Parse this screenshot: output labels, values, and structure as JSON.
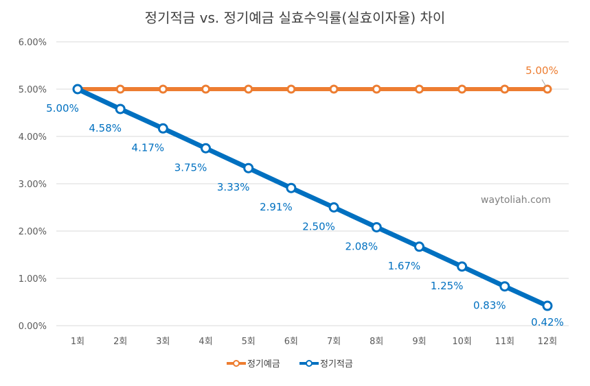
{
  "chart_data": {
    "type": "line",
    "title": "정기적금 vs. 정기예금 실효수익률(실효이자율) 차이",
    "categories": [
      "1회",
      "2회",
      "3회",
      "4회",
      "5회",
      "6회",
      "7회",
      "8회",
      "9회",
      "10회",
      "11회",
      "12회"
    ],
    "ylim": [
      0,
      6
    ],
    "yticks": [
      "0.00%",
      "1.00%",
      "2.00%",
      "3.00%",
      "4.00%",
      "5.00%",
      "6.00%"
    ],
    "grid": true,
    "legend": "bottom",
    "series": [
      {
        "name": "정기예금",
        "color": "#ed7d31",
        "values": [
          5.0,
          5.0,
          5.0,
          5.0,
          5.0,
          5.0,
          5.0,
          5.0,
          5.0,
          5.0,
          5.0,
          5.0
        ],
        "labels": {
          "11": "5.00%"
        }
      },
      {
        "name": "정기적금",
        "color": "#0070c0",
        "values": [
          5.0,
          4.58,
          4.17,
          3.75,
          3.33,
          2.91,
          2.5,
          2.08,
          1.67,
          1.25,
          0.83,
          0.42
        ],
        "labels": {
          "0": "5.00%",
          "1": "4.58%",
          "2": "4.17%",
          "3": "3.75%",
          "4": "3.33%",
          "5": "2.91%",
          "6": "2.50%",
          "7": "2.08%",
          "8": "1.67%",
          "9": "1.25%",
          "10": "0.83%",
          "11": "0.42%"
        }
      }
    ],
    "annotation": "waytoliah.com"
  }
}
